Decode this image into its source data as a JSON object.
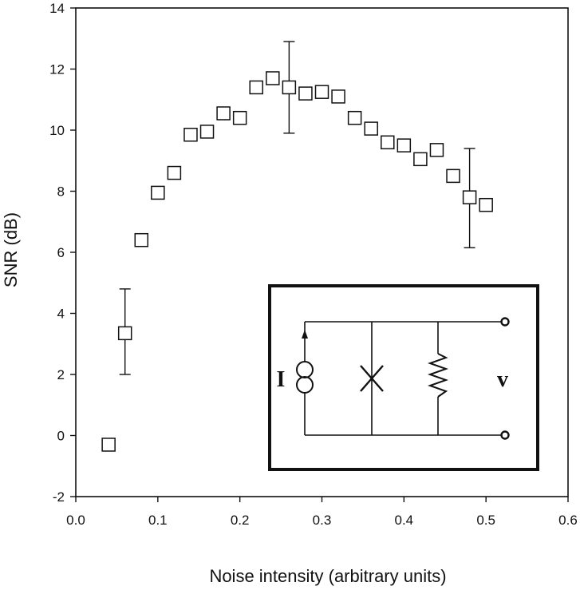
{
  "chart_data": {
    "type": "scatter",
    "xlabel": "Noise intensity (arbitrary units)",
    "ylabel": "SNR (dB)",
    "xlim": [
      0.0,
      0.6
    ],
    "ylim": [
      -2,
      14
    ],
    "xticks": [
      "0.0",
      "0.1",
      "0.2",
      "0.3",
      "0.4",
      "0.5",
      "0.6"
    ],
    "yticks": [
      "-2",
      "0",
      "2",
      "4",
      "6",
      "8",
      "10",
      "12",
      "14"
    ],
    "grid": false,
    "marker": "open-square",
    "points": [
      {
        "x": 0.04,
        "y": -0.3
      },
      {
        "x": 0.06,
        "y": 3.35
      },
      {
        "x": 0.08,
        "y": 6.4
      },
      {
        "x": 0.1,
        "y": 7.95
      },
      {
        "x": 0.12,
        "y": 8.6
      },
      {
        "x": 0.14,
        "y": 9.85
      },
      {
        "x": 0.16,
        "y": 9.95
      },
      {
        "x": 0.18,
        "y": 10.55
      },
      {
        "x": 0.2,
        "y": 10.4
      },
      {
        "x": 0.22,
        "y": 11.4
      },
      {
        "x": 0.24,
        "y": 11.7
      },
      {
        "x": 0.26,
        "y": 11.4
      },
      {
        "x": 0.28,
        "y": 11.2
      },
      {
        "x": 0.3,
        "y": 11.25
      },
      {
        "x": 0.32,
        "y": 11.1
      },
      {
        "x": 0.34,
        "y": 10.4
      },
      {
        "x": 0.36,
        "y": 10.05
      },
      {
        "x": 0.38,
        "y": 9.6
      },
      {
        "x": 0.4,
        "y": 9.5
      },
      {
        "x": 0.42,
        "y": 9.05
      },
      {
        "x": 0.44,
        "y": 9.35
      },
      {
        "x": 0.46,
        "y": 8.5
      },
      {
        "x": 0.48,
        "y": 7.8
      },
      {
        "x": 0.5,
        "y": 7.55
      }
    ],
    "error_bars": [
      {
        "x": 0.06,
        "low": 2.0,
        "high": 4.8
      },
      {
        "x": 0.26,
        "low": 9.9,
        "high": 12.9
      },
      {
        "x": 0.48,
        "low": 6.15,
        "high": 9.4
      }
    ],
    "inset": {
      "description_labels": [
        "I",
        "V"
      ],
      "components": [
        "current-source",
        "junction",
        "resistor"
      ]
    }
  }
}
